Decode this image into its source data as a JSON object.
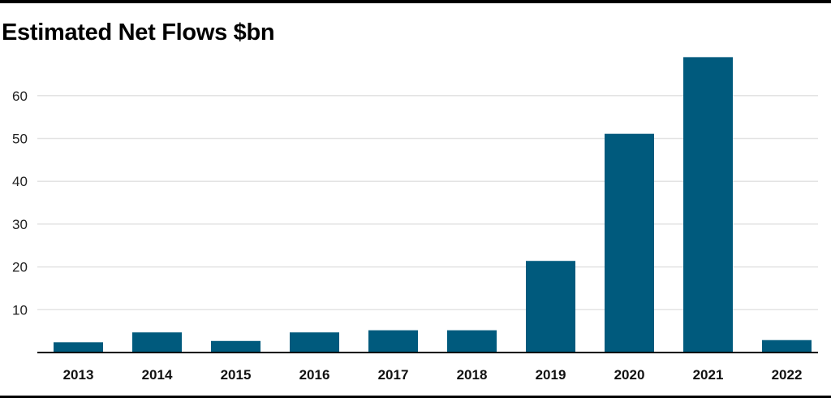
{
  "chart_data": {
    "type": "bar",
    "title": "Estimated Net Flows $bn",
    "categories": [
      "2013",
      "2014",
      "2015",
      "2016",
      "2017",
      "2018",
      "2019",
      "2020",
      "2021",
      "2022"
    ],
    "values": [
      2.4,
      4.7,
      2.7,
      4.7,
      5.2,
      5.2,
      21.4,
      51.1,
      69.0,
      2.9
    ],
    "yticks": [
      10,
      20,
      30,
      40,
      50,
      60
    ],
    "ylim": [
      0,
      70
    ],
    "grid": true,
    "bar_color": "#005a7d",
    "grid_color": "#e3e3e3"
  }
}
